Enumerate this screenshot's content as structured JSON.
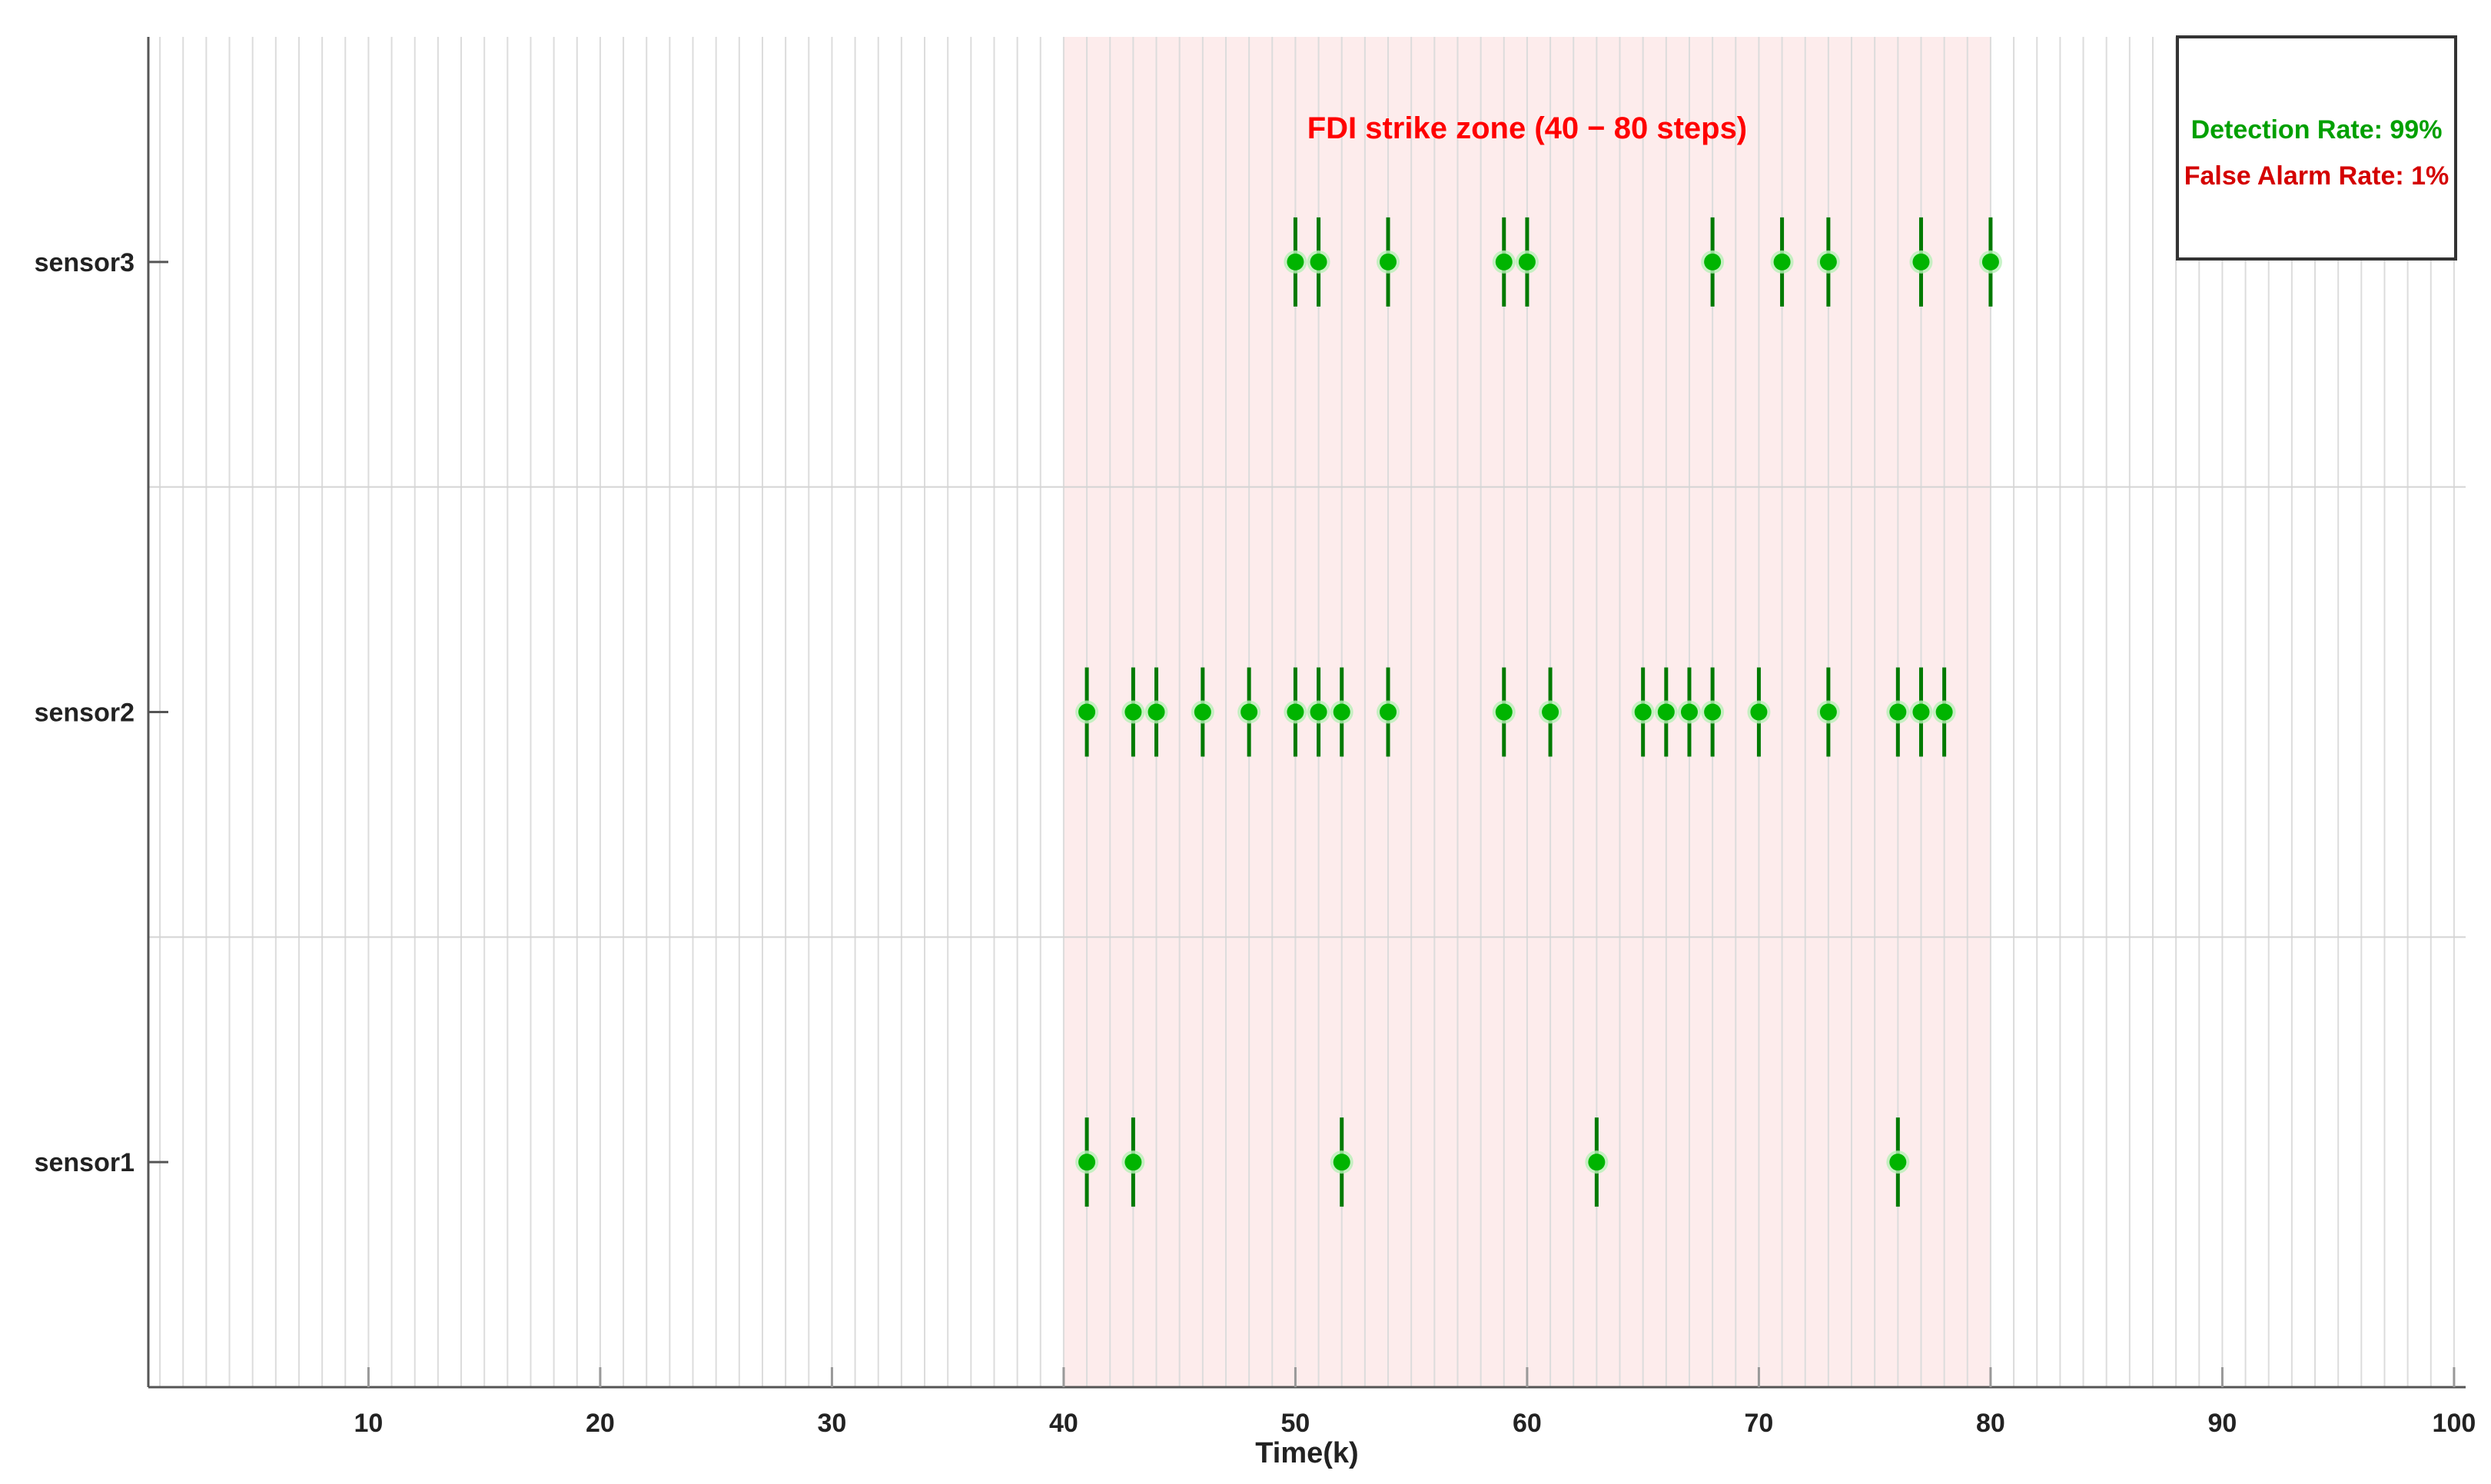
{
  "chart_data": {
    "type": "scatter",
    "xlabel": "Time(k)",
    "xlim": [
      0.5,
      100.5
    ],
    "x_ticks": [
      10,
      20,
      30,
      40,
      50,
      60,
      70,
      80,
      90,
      100
    ],
    "x_tick_labels": [
      "10",
      "20",
      "30",
      "40",
      "50",
      "60",
      "70",
      "80",
      "90",
      "100"
    ],
    "minor_grid_step": 1,
    "grid": true,
    "categories": [
      "sensor1",
      "sensor2",
      "sensor3"
    ],
    "strike_zone": {
      "start": 40,
      "end": 80,
      "label": "FDI strike zone (40 − 80 steps)",
      "color": "#fdecec",
      "label_color": "#ff0000"
    },
    "series": [
      {
        "category": "sensor1",
        "x": [
          41,
          43,
          52,
          63,
          76
        ]
      },
      {
        "category": "sensor2",
        "x": [
          41,
          43,
          44,
          46,
          48,
          50,
          51,
          52,
          54,
          59,
          61,
          65,
          66,
          67,
          68,
          70,
          73,
          76,
          77,
          78
        ]
      },
      {
        "category": "sensor3",
        "x": [
          50,
          51,
          54,
          59,
          60,
          68,
          71,
          73,
          77,
          80
        ]
      }
    ],
    "marker_color": "#00b400",
    "stem_color": "#007a00",
    "legend": {
      "position": "top-right",
      "detection_rate": "Detection Rate: 99%",
      "false_alarm_rate": "False Alarm Rate: 1%",
      "detection_color": "#00a000",
      "false_alarm_color": "#d40000"
    }
  }
}
